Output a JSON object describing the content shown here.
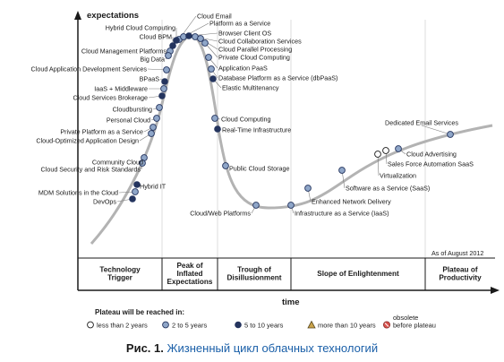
{
  "chart_data": {
    "type": "hype-cycle",
    "ylabel": "expectations",
    "xlabel": "time",
    "as_of": "As of August 2012",
    "phases": [
      [
        "Technology",
        "Trigger"
      ],
      [
        "Peak of",
        "Inflated",
        "Expectations"
      ],
      [
        "Trough of",
        "Disillusionment"
      ],
      [
        "Slope of Enlightenment"
      ],
      [
        "Plateau of",
        "Productivity"
      ]
    ],
    "technologies": [
      {
        "name": "Cloud Email",
        "plateau": "2-5"
      },
      {
        "name": "Platform as a Service",
        "plateau": "2-5"
      },
      {
        "name": "Browser Client OS",
        "plateau": "5-10"
      },
      {
        "name": "Cloud Collaboration Services",
        "plateau": "2-5"
      },
      {
        "name": "Cloud Parallel Processing",
        "plateau": "2-5"
      },
      {
        "name": "Private Cloud Computing",
        "plateau": "2-5"
      },
      {
        "name": "Application PaaS",
        "plateau": "2-5"
      },
      {
        "name": "Database Platform as a Service (dbPaaS)",
        "plateau": "2-5"
      },
      {
        "name": "Elastic Multitenancy",
        "plateau": "5-10"
      },
      {
        "name": "Hybrid Cloud Computing",
        "plateau": "5-10"
      },
      {
        "name": "Cloud BPM",
        "plateau": "5-10"
      },
      {
        "name": "Cloud Management Platforms",
        "plateau": "2-5"
      },
      {
        "name": "Big Data",
        "plateau": "2-5"
      },
      {
        "name": "Cloud Application Development Services",
        "plateau": "2-5"
      },
      {
        "name": "BPaaS",
        "plateau": "5-10"
      },
      {
        "name": "IaaS + Middleware",
        "plateau": "2-5"
      },
      {
        "name": "Cloud Services Brokerage",
        "plateau": "5-10"
      },
      {
        "name": "Cloudbursting",
        "plateau": "2-5"
      },
      {
        "name": "Personal Cloud",
        "plateau": "2-5"
      },
      {
        "name": "Private Platform as a Service",
        "plateau": "2-5"
      },
      {
        "name": "Cloud-Optimized Application Design",
        "plateau": "2-5"
      },
      {
        "name": "Community Cloud",
        "plateau": "2-5"
      },
      {
        "name": "Cloud Security and Risk Standards",
        "plateau": "2-5"
      },
      {
        "name": "Hybrid IT",
        "plateau": "5-10"
      },
      {
        "name": "MDM Solutions in the Cloud",
        "plateau": "2-5"
      },
      {
        "name": "DevOps",
        "plateau": "5-10"
      },
      {
        "name": "Cloud Computing",
        "plateau": "2-5"
      },
      {
        "name": "Real-Time Infrastructure",
        "plateau": "5-10"
      },
      {
        "name": "Public Cloud Storage",
        "plateau": "2-5"
      },
      {
        "name": "Cloud/Web Platforms",
        "plateau": "2-5"
      },
      {
        "name": "Infrastructure as a Service (IaaS)",
        "plateau": "2-5"
      },
      {
        "name": "Enhanced Network Delivery",
        "plateau": "2-5"
      },
      {
        "name": "Software as a Service (SaaS)",
        "plateau": "2-5"
      },
      {
        "name": "Virtualization",
        "plateau": "<2"
      },
      {
        "name": "Sales Force Automation SaaS",
        "plateau": "<2"
      },
      {
        "name": "Cloud Advertising",
        "plateau": "2-5"
      },
      {
        "name": "Dedicated Email Services",
        "plateau": "2-5"
      }
    ]
  },
  "legend": {
    "title": "Plateau will be reached in:",
    "items": [
      {
        "key": "<2",
        "label": "less than 2 years"
      },
      {
        "key": "2-5",
        "label": "2 to 5 years"
      },
      {
        "key": "5-10",
        "label": "5 to 10 years"
      },
      {
        "key": ">10",
        "label": "more than 10 years"
      },
      {
        "key": "obsolete",
        "label_top": "obsolete",
        "label": "before plateau"
      }
    ]
  },
  "colors": {
    "curve": "#b3b3b3",
    "dot_dark": "#24345e",
    "dot_outline": "#24345e",
    "triangle": "#c9a24a",
    "obsolete": "#d9534f",
    "caption": "#1a5fa8"
  },
  "caption": {
    "number": "Рис. 1.",
    "text": "Жизненный цикл облачных технологий"
  }
}
